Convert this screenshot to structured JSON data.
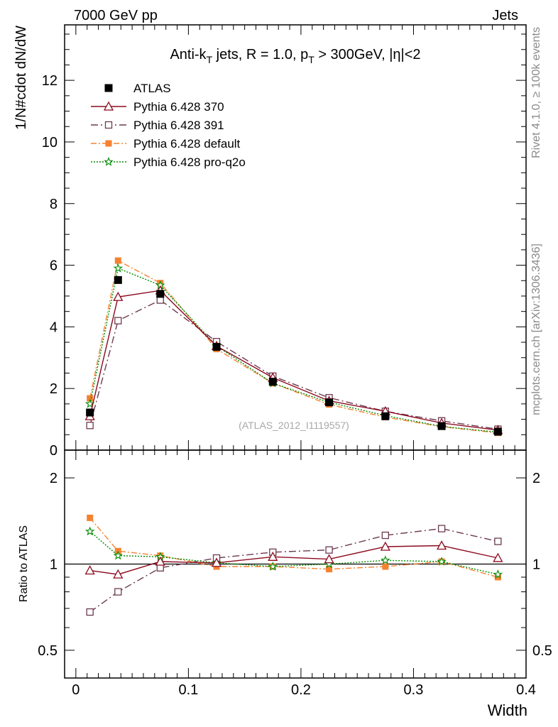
{
  "header": {
    "left": "7000 GeV pp",
    "right": "Jets"
  },
  "side_labels": {
    "rivet": "Rivet 4.1.0, ≥ 100k events",
    "mcplots": "mcplots.cern.ch [arXiv:1306.3436]"
  },
  "watermark": "(ATLAS_2012_I1119557)",
  "colors": {
    "atlas": "#000000",
    "p370": "#8b0a1e",
    "p391": "#6b3a50",
    "default": "#f58231",
    "proq2o": "#008a00"
  },
  "chart_data": [
    {
      "type": "line",
      "title": "Anti-k_T jets, R = 1.0, p_T > 300GeV, |η|<2",
      "title_parts": {
        "a": "Anti-k",
        "a_sub": "T",
        "b": " jets, R = 1.0, p",
        "b_sub": "T",
        "c": " > 300GeV, |η|<2"
      },
      "xlabel": "Width",
      "ylabel": "1/N#cdot dN/dW",
      "xlim": [
        -0.01,
        0.4
      ],
      "ylim": [
        0,
        13.8
      ],
      "yticks": [
        0,
        2,
        4,
        6,
        8,
        10,
        12
      ],
      "ytick_labels": [
        "0",
        "2",
        "4",
        "6",
        "8",
        "10",
        "12"
      ],
      "x": [
        0.0125,
        0.0375,
        0.075,
        0.125,
        0.175,
        0.225,
        0.275,
        0.325,
        0.375
      ],
      "series": [
        {
          "name": "ATLAS",
          "key": "atlas",
          "values": [
            1.22,
            5.52,
            5.07,
            3.35,
            2.22,
            1.55,
            1.1,
            0.78,
            0.6
          ]
        },
        {
          "name": "Pythia 6.428 370",
          "key": "p370",
          "values": [
            1.1,
            4.97,
            5.18,
            3.38,
            2.35,
            1.6,
            1.26,
            0.88,
            0.65
          ]
        },
        {
          "name": "Pythia 6.428 391",
          "key": "p391",
          "values": [
            0.8,
            4.2,
            4.87,
            3.52,
            2.4,
            1.7,
            1.26,
            0.95,
            0.68
          ]
        },
        {
          "name": "Pythia 6.428 default",
          "key": "default",
          "values": [
            1.68,
            6.15,
            5.42,
            3.28,
            2.17,
            1.48,
            1.07,
            0.76,
            0.56
          ]
        },
        {
          "name": "Pythia 6.428 pro-q2o",
          "key": "proq2o",
          "values": [
            1.5,
            5.9,
            5.35,
            3.38,
            2.17,
            1.55,
            1.12,
            0.77,
            0.58
          ]
        }
      ]
    },
    {
      "type": "line",
      "ylabel": "Ratio to ATLAS",
      "xlabel": "Width",
      "yscale": "log",
      "ylim": [
        0.4,
        2.5
      ],
      "yticks": [
        0.5,
        1,
        2
      ],
      "ytick_labels": [
        "0.5",
        "1",
        "2"
      ],
      "xticks": [
        0,
        0.1,
        0.2,
        0.3,
        0.4
      ],
      "xtick_labels": [
        "0",
        "0.1",
        "0.2",
        "0.3",
        "0.4"
      ],
      "x": [
        0.0125,
        0.0375,
        0.075,
        0.125,
        0.175,
        0.225,
        0.275,
        0.325,
        0.375
      ],
      "series": [
        {
          "name": "Pythia 6.428 370",
          "key": "p370",
          "values": [
            0.95,
            0.92,
            1.02,
            1.01,
            1.06,
            1.04,
            1.15,
            1.16,
            1.05
          ]
        },
        {
          "name": "Pythia 6.428 391",
          "key": "p391",
          "values": [
            0.68,
            0.8,
            0.97,
            1.05,
            1.1,
            1.12,
            1.26,
            1.33,
            1.2
          ]
        },
        {
          "name": "Pythia 6.428 default",
          "key": "default",
          "values": [
            1.45,
            1.11,
            1.07,
            0.98,
            0.98,
            0.96,
            0.98,
            1.02,
            0.9
          ]
        },
        {
          "name": "Pythia 6.428 pro-q2o",
          "key": "proq2o",
          "values": [
            1.3,
            1.07,
            1.06,
            1.01,
            0.98,
            1.0,
            1.03,
            1.02,
            0.92
          ]
        }
      ]
    }
  ]
}
